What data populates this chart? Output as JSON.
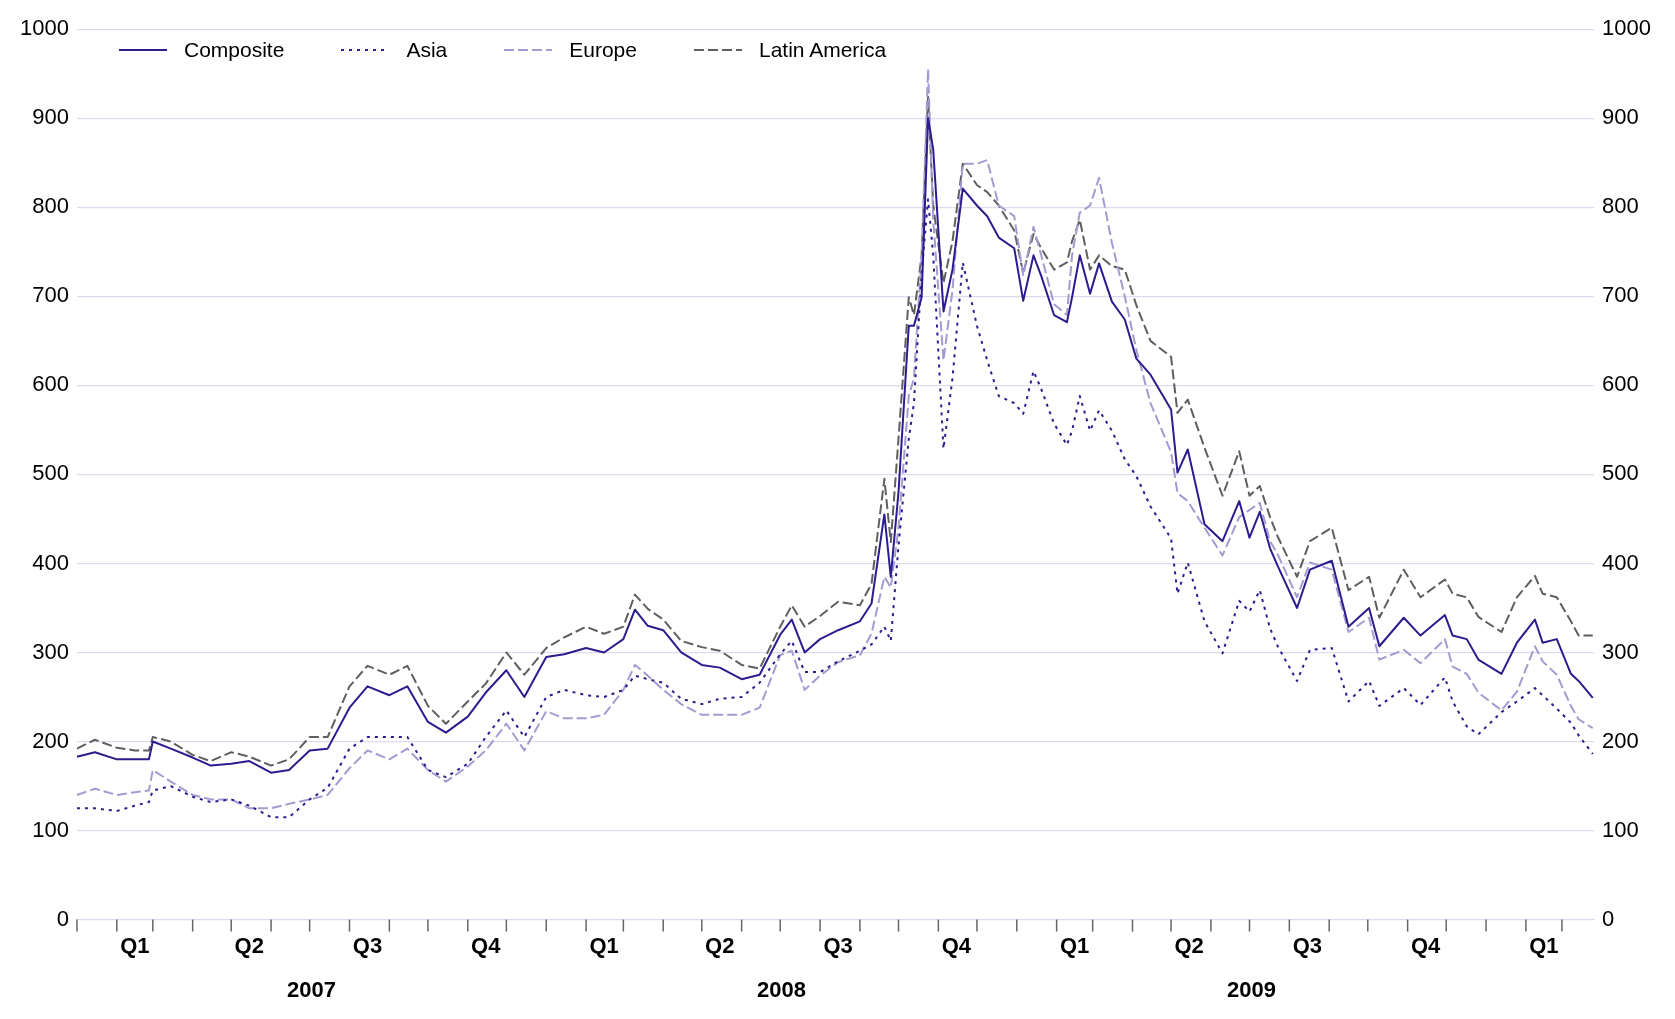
{
  "chart_data": {
    "type": "line",
    "x": [
      "2007-01-01",
      "2007-01-15",
      "2007-02-01",
      "2007-02-15",
      "2007-02-26",
      "2007-03-01",
      "2007-03-15",
      "2007-04-01",
      "2007-04-15",
      "2007-05-01",
      "2007-05-15",
      "2007-06-01",
      "2007-06-15",
      "2007-07-01",
      "2007-07-15",
      "2007-08-01",
      "2007-08-15",
      "2007-09-01",
      "2007-09-15",
      "2007-10-01",
      "2007-10-15",
      "2007-11-01",
      "2007-11-15",
      "2007-12-01",
      "2007-12-15",
      "2008-01-01",
      "2008-01-15",
      "2008-02-01",
      "2008-02-15",
      "2008-03-01",
      "2008-03-10",
      "2008-03-20",
      "2008-04-01",
      "2008-04-15",
      "2008-05-01",
      "2008-05-15",
      "2008-06-01",
      "2008-06-15",
      "2008-07-01",
      "2008-07-10",
      "2008-07-20",
      "2008-08-01",
      "2008-08-15",
      "2008-09-01",
      "2008-09-10",
      "2008-09-20",
      "2008-09-25",
      "2008-10-01",
      "2008-10-09",
      "2008-10-13",
      "2008-10-19",
      "2008-10-24",
      "2008-10-28",
      "2008-11-05",
      "2008-11-12",
      "2008-11-20",
      "2008-12-01",
      "2008-12-09",
      "2008-12-18",
      "2008-12-30",
      "2009-01-06",
      "2009-01-14",
      "2009-01-20",
      "2009-01-30",
      "2009-02-09",
      "2009-02-13",
      "2009-02-19",
      "2009-02-27",
      "2009-03-06",
      "2009-03-16",
      "2009-03-26",
      "2009-04-04",
      "2009-04-15",
      "2009-05-01",
      "2009-05-06",
      "2009-05-14",
      "2009-05-27",
      "2009-06-10",
      "2009-06-23",
      "2009-07-01",
      "2009-07-09",
      "2009-07-17",
      "2009-07-23",
      "2009-08-07",
      "2009-08-17",
      "2009-09-03",
      "2009-09-16",
      "2009-10-02",
      "2009-10-10",
      "2009-10-29",
      "2009-11-11",
      "2009-11-30",
      "2009-12-06",
      "2009-12-17",
      "2009-12-26",
      "2010-01-13",
      "2010-01-25",
      "2010-02-08",
      "2010-02-14",
      "2010-02-25",
      "2010-03-08",
      "2010-03-14",
      "2010-03-25"
    ],
    "series": [
      {
        "name": "Composite",
        "color": "#2b1d8e",
        "line_style": "solid",
        "values": [
          183,
          188,
          180,
          180,
          180,
          200,
          192,
          182,
          173,
          175,
          178,
          165,
          168,
          190,
          192,
          238,
          262,
          252,
          262,
          222,
          210,
          228,
          255,
          280,
          250,
          295,
          298,
          305,
          300,
          315,
          348,
          330,
          325,
          300,
          286,
          283,
          270,
          275,
          320,
          337,
          300,
          315,
          325,
          335,
          355,
          455,
          385,
          480,
          667,
          667,
          699,
          900,
          865,
          683,
          730,
          821,
          802,
          790,
          766,
          754,
          695,
          746,
          723,
          679,
          671,
          699,
          746,
          703,
          737,
          694,
          674,
          630,
          612,
          573,
          502,
          528,
          444,
          425,
          470,
          429,
          458,
          417,
          397,
          350,
          393,
          403,
          329,
          350,
          307,
          339,
          319,
          342,
          319,
          315,
          292,
          276,
          311,
          337,
          311,
          315,
          276,
          268,
          249
        ]
      },
      {
        "name": "Asia",
        "color": "#2b1d8e",
        "line_style": "dotted",
        "values": [
          125,
          125,
          122,
          128,
          132,
          145,
          150,
          138,
          132,
          135,
          128,
          115,
          115,
          135,
          148,
          192,
          205,
          205,
          205,
          168,
          160,
          175,
          205,
          235,
          205,
          250,
          258,
          252,
          250,
          258,
          274,
          270,
          266,
          248,
          242,
          248,
          250,
          266,
          298,
          313,
          278,
          278,
          290,
          302,
          309,
          329,
          313,
          420,
          540,
          580,
          726,
          809,
          746,
          529,
          608,
          738,
          667,
          628,
          588,
          580,
          568,
          616,
          596,
          557,
          533,
          549,
          588,
          549,
          572,
          549,
          517,
          498,
          464,
          428,
          366,
          401,
          335,
          299,
          358,
          346,
          370,
          327,
          307,
          268,
          303,
          305,
          245,
          268,
          240,
          260,
          241,
          272,
          245,
          217,
          208,
          233,
          245,
          260,
          252,
          237,
          221,
          207,
          186
        ]
      },
      {
        "name": "Europe",
        "color": "#a49bd0",
        "line_style": "dashed",
        "values": [
          140,
          147,
          140,
          143,
          145,
          168,
          155,
          140,
          135,
          135,
          125,
          125,
          130,
          135,
          140,
          170,
          190,
          180,
          192,
          168,
          155,
          172,
          190,
          220,
          190,
          234,
          226,
          226,
          230,
          258,
          286,
          274,
          258,
          242,
          230,
          230,
          230,
          238,
          297,
          302,
          258,
          274,
          289,
          297,
          321,
          385,
          373,
          440,
          588,
          608,
          746,
          955,
          786,
          628,
          707,
          849,
          849,
          853,
          802,
          790,
          723,
          778,
          746,
          691,
          679,
          746,
          794,
          802,
          833,
          760,
          700,
          640,
          580,
          525,
          479,
          470,
          440,
          409,
          452,
          460,
          468,
          425,
          410,
          362,
          401,
          393,
          323,
          339,
          292,
          303,
          288,
          315,
          284,
          276,
          255,
          235,
          256,
          307,
          290,
          275,
          240,
          225,
          215
        ]
      },
      {
        "name": "Latin America",
        "color": "#5f5f5f",
        "line_style": "dashed",
        "values": [
          192,
          202,
          193,
          190,
          190,
          205,
          200,
          185,
          178,
          188,
          183,
          173,
          180,
          205,
          205,
          262,
          285,
          275,
          285,
          240,
          220,
          245,
          265,
          300,
          275,
          305,
          317,
          329,
          321,
          329,
          365,
          349,
          337,
          313,
          306,
          302,
          286,
          282,
          329,
          353,
          329,
          341,
          357,
          353,
          377,
          495,
          424,
          540,
          699,
          679,
          746,
          924,
          802,
          715,
          762,
          849,
          825,
          817,
          802,
          774,
          726,
          770,
          754,
          730,
          738,
          762,
          786,
          730,
          746,
          734,
          730,
          690,
          650,
          632,
          569,
          584,
          530,
          476,
          526,
          476,
          487,
          452,
          430,
          385,
          425,
          440,
          370,
          385,
          339,
          393,
          362,
          382,
          366,
          362,
          340,
          323,
          362,
          386,
          366,
          362,
          335,
          319,
          319
        ]
      }
    ],
    "xlim": [
      "2007-01-01",
      "2010-03-26"
    ],
    "xticks": [
      {
        "value": "2007-01-01",
        "label": null
      },
      {
        "value": "2007-02-01",
        "label": null
      },
      {
        "value": "2007-02-15",
        "label": "Q1"
      },
      {
        "value": "2007-03-01",
        "label": null
      },
      {
        "value": "2007-04-01",
        "label": null
      },
      {
        "value": "2007-05-01",
        "label": null
      },
      {
        "value": "2007-05-15",
        "label": "Q2"
      },
      {
        "value": "2007-06-01",
        "label": null
      },
      {
        "value": "2007-07-01",
        "label": null
      },
      {
        "value": "2007-08-01",
        "label": null
      },
      {
        "value": "2007-08-15",
        "label": "Q3"
      },
      {
        "value": "2007-09-01",
        "label": null
      },
      {
        "value": "2007-10-01",
        "label": null
      },
      {
        "value": "2007-11-01",
        "label": null
      },
      {
        "value": "2007-11-15",
        "label": "Q4"
      },
      {
        "value": "2007-12-01",
        "label": null
      },
      {
        "value": "2008-01-01",
        "label": null
      },
      {
        "value": "2008-02-01",
        "label": null
      },
      {
        "value": "2008-02-15",
        "label": "Q1"
      },
      {
        "value": "2008-03-01",
        "label": null
      },
      {
        "value": "2008-04-01",
        "label": null
      },
      {
        "value": "2008-05-01",
        "label": null
      },
      {
        "value": "2008-05-15",
        "label": "Q2"
      },
      {
        "value": "2008-06-01",
        "label": null
      },
      {
        "value": "2008-07-01",
        "label": null
      },
      {
        "value": "2008-08-01",
        "label": null
      },
      {
        "value": "2008-08-15",
        "label": "Q3"
      },
      {
        "value": "2008-09-01",
        "label": null
      },
      {
        "value": "2008-10-01",
        "label": null
      },
      {
        "value": "2008-11-01",
        "label": null
      },
      {
        "value": "2008-11-15",
        "label": "Q4"
      },
      {
        "value": "2008-12-01",
        "label": null
      },
      {
        "value": "2009-01-01",
        "label": null
      },
      {
        "value": "2009-02-01",
        "label": null
      },
      {
        "value": "2009-02-15",
        "label": "Q1"
      },
      {
        "value": "2009-03-01",
        "label": null
      },
      {
        "value": "2009-04-01",
        "label": null
      },
      {
        "value": "2009-05-01",
        "label": null
      },
      {
        "value": "2009-05-15",
        "label": "Q2"
      },
      {
        "value": "2009-06-01",
        "label": null
      },
      {
        "value": "2009-07-01",
        "label": null
      },
      {
        "value": "2009-08-01",
        "label": null
      },
      {
        "value": "2009-08-15",
        "label": "Q3"
      },
      {
        "value": "2009-09-01",
        "label": null
      },
      {
        "value": "2009-10-01",
        "label": null
      },
      {
        "value": "2009-11-01",
        "label": null
      },
      {
        "value": "2009-11-15",
        "label": "Q4"
      },
      {
        "value": "2009-12-01",
        "label": null
      },
      {
        "value": "2010-01-01",
        "label": null
      },
      {
        "value": "2010-02-01",
        "label": null
      },
      {
        "value": "2010-02-15",
        "label": "Q1"
      },
      {
        "value": "2010-03-01",
        "label": null
      }
    ],
    "ylim": [
      0,
      1000
    ],
    "yticks": [
      0,
      100,
      200,
      300,
      400,
      500,
      600,
      700,
      800,
      900,
      1000
    ],
    "y2lim": [
      0,
      1000
    ],
    "y2ticks": [
      0,
      100,
      200,
      300,
      400,
      500,
      600,
      700,
      800,
      900,
      1000
    ],
    "annotations": [
      "2007",
      "2008",
      "2009"
    ],
    "grid": "y",
    "legend": "top left"
  }
}
